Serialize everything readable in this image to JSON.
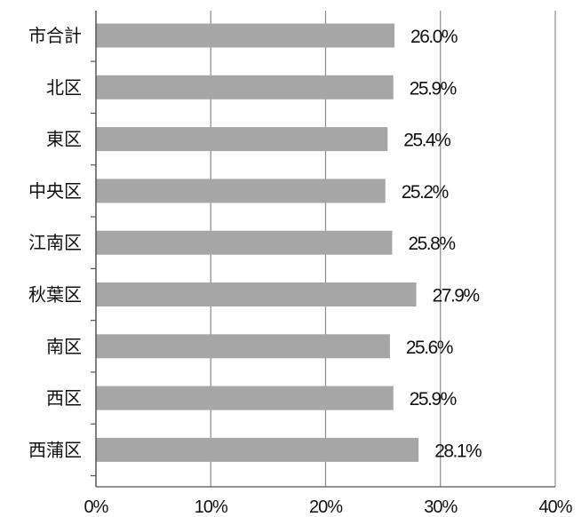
{
  "chart_data": {
    "type": "bar",
    "orientation": "horizontal",
    "categories": [
      "市合計",
      "北区",
      "東区",
      "中央区",
      "江南区",
      "秋葉区",
      "南区",
      "西区",
      "西蒲区"
    ],
    "values": [
      26.0,
      25.9,
      25.4,
      25.2,
      25.8,
      27.9,
      25.6,
      25.9,
      28.1
    ],
    "value_labels": [
      "26.0%",
      "25.9%",
      "25.4%",
      "25.2%",
      "25.8%",
      "27.9%",
      "25.6%",
      "25.9%",
      "28.1%"
    ],
    "xlim": [
      0,
      40
    ],
    "x_ticks": [
      0,
      10,
      20,
      30,
      40
    ],
    "x_tick_labels": [
      "0%",
      "10%",
      "20%",
      "30%",
      "40%"
    ],
    "title": "",
    "xlabel": "",
    "ylabel": "",
    "grid": "vertical",
    "legend": "none",
    "colors": {
      "bar": "#a6a6a6",
      "grid": "#8c8c8c",
      "axis": "#555555",
      "text": "#111111"
    }
  }
}
